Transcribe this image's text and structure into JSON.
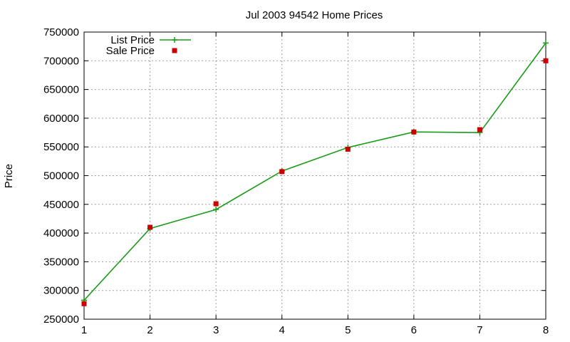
{
  "chart_data": {
    "type": "line",
    "title": "Jul 2003 94542 Home Prices",
    "xlabel": "",
    "ylabel": "Price",
    "x": [
      1,
      2,
      3,
      4,
      5,
      6,
      7,
      8
    ],
    "xlim": [
      1,
      8
    ],
    "ylim": [
      250000,
      750000
    ],
    "xticks": [
      "1",
      "2",
      "3",
      "4",
      "5",
      "6",
      "7",
      "8"
    ],
    "yticks": [
      "250000",
      "300000",
      "350000",
      "400000",
      "450000",
      "500000",
      "550000",
      "600000",
      "650000",
      "700000",
      "750000"
    ],
    "grid": true,
    "legend_position": "top-left",
    "series": [
      {
        "name": "List Price",
        "style": "linespoints",
        "marker": "plus",
        "color": "#1a9b1a",
        "values": [
          283000,
          408000,
          441000,
          508000,
          549000,
          576000,
          575000,
          731000
        ]
      },
      {
        "name": "Sale Price",
        "style": "points",
        "marker": "square",
        "color": "#cc0000",
        "values": [
          277000,
          410000,
          451000,
          507000,
          546000,
          576000,
          580000,
          700000
        ]
      }
    ]
  }
}
